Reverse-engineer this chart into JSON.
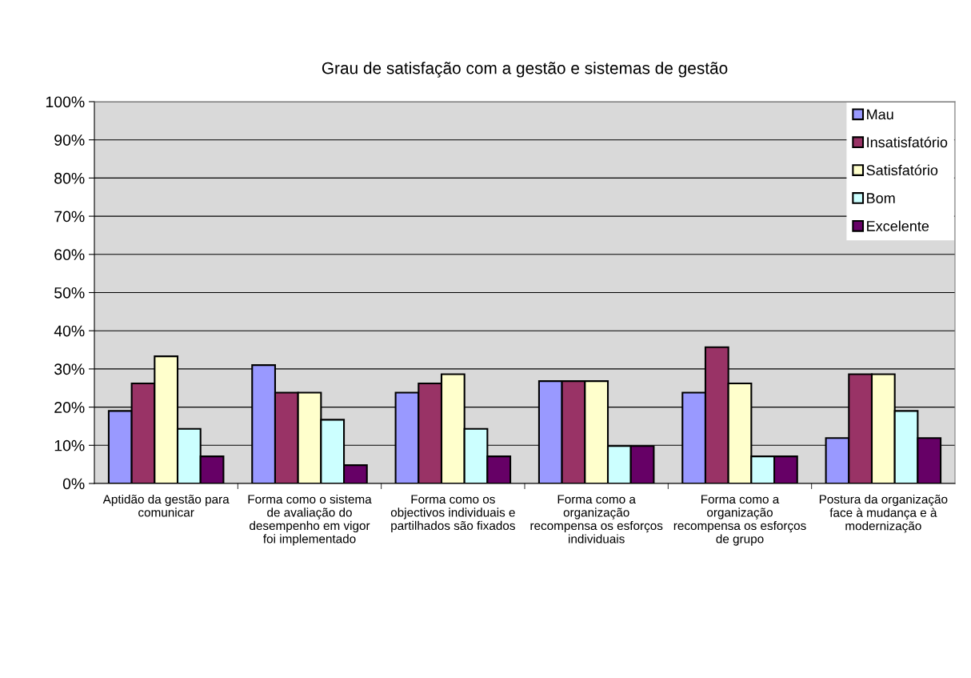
{
  "chart_data": {
    "type": "bar",
    "title": "Grau de satisfação com a gestão e sistemas de gestão",
    "categories": [
      "Aptidão da gestão para comunicar",
      "Forma como o sistema de avaliação do desempenho em vigor foi implementado",
      "Forma como os objectivos individuais e partilhados são fixados",
      "Forma como a organização recompensa os esforços individuais",
      "Forma como a organização recompensa os esforços de grupo",
      "Postura da organização face à mudança e à modernização"
    ],
    "series": [
      {
        "name": "Mau",
        "color": "#9999ff",
        "values": [
          19.0,
          31.0,
          23.8,
          26.8,
          23.8,
          11.9
        ]
      },
      {
        "name": "Insatisfatório",
        "color": "#993366",
        "values": [
          26.2,
          23.8,
          26.2,
          26.8,
          35.7,
          28.6
        ]
      },
      {
        "name": "Satisfatório",
        "color": "#ffffcc",
        "values": [
          33.3,
          23.8,
          28.6,
          26.8,
          26.2,
          28.6
        ]
      },
      {
        "name": "Bom",
        "color": "#ccffff",
        "values": [
          14.3,
          16.7,
          14.3,
          9.8,
          7.1,
          19.0
        ]
      },
      {
        "name": "Excelente",
        "color": "#660066",
        "values": [
          7.1,
          4.8,
          7.1,
          9.8,
          7.1,
          11.9
        ]
      }
    ],
    "ylim": [
      0,
      100
    ],
    "yticks": [
      {
        "value": 0,
        "label": "0%"
      },
      {
        "value": 10,
        "label": "10%"
      },
      {
        "value": 20,
        "label": "20%"
      },
      {
        "value": 30,
        "label": "30%"
      },
      {
        "value": 40,
        "label": "40%"
      },
      {
        "value": 50,
        "label": "50%"
      },
      {
        "value": 60,
        "label": "60%"
      },
      {
        "value": 70,
        "label": "70%"
      },
      {
        "value": 80,
        "label": "80%"
      },
      {
        "value": 90,
        "label": "90%"
      },
      {
        "value": 100,
        "label": "100%"
      }
    ],
    "grid": "y",
    "legend": "top right"
  }
}
